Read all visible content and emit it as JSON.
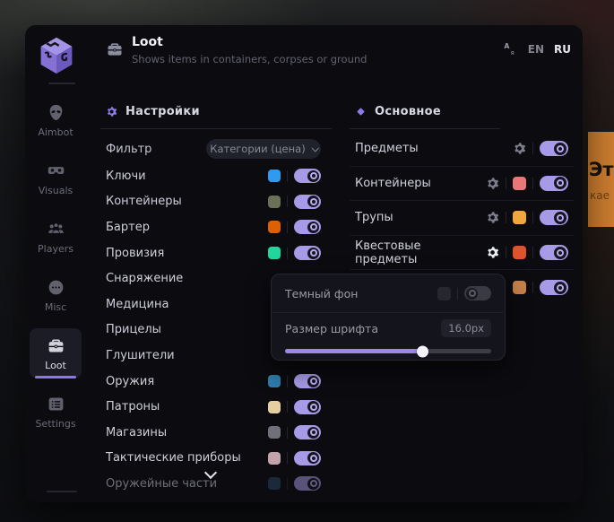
{
  "background": {
    "banner_line1": "Эт",
    "banner_line2": "кае",
    "banner_color": "#cf7e30"
  },
  "header": {
    "title": "Loot",
    "subtitle": "Shows items in containers, corpses or ground",
    "lang_en": "EN",
    "lang_ru": "RU"
  },
  "sidebar": {
    "items": [
      {
        "label": "Aimbot",
        "active": false
      },
      {
        "label": "Visuals",
        "active": false
      },
      {
        "label": "Players",
        "active": false
      },
      {
        "label": "Misc",
        "active": false
      },
      {
        "label": "Loot",
        "active": true
      },
      {
        "label": "Settings",
        "active": false
      }
    ]
  },
  "left_panel": {
    "title": "Настройки",
    "filter_label": "Фильтр",
    "filter_value": "Категории (цена)",
    "rows": [
      {
        "label": "Ключи",
        "color": "#2f9bf0",
        "enabled": true
      },
      {
        "label": "Контейнеры",
        "color": "#6b7158",
        "enabled": true
      },
      {
        "label": "Бартер",
        "color": "#de6000",
        "enabled": true
      },
      {
        "label": "Провизия",
        "color": "#1fd79a",
        "enabled": true
      },
      {
        "label": "Снаряжение"
      },
      {
        "label": "Медицина"
      },
      {
        "label": "Прицелы"
      },
      {
        "label": "Глушители"
      },
      {
        "label": "Оружия",
        "color": "#2e7cab",
        "enabled": true
      },
      {
        "label": "Патроны",
        "color": "#e5cfa0",
        "enabled": true
      },
      {
        "label": "Магазины",
        "color": "#70707a",
        "enabled": true
      },
      {
        "label": "Тактические приборы",
        "color": "#c2a3ab",
        "enabled": true
      },
      {
        "label": "Оружейные части",
        "color": "#2a4a66",
        "enabled": true
      }
    ]
  },
  "right_panel": {
    "title": "Основное",
    "rows": [
      {
        "label": "Предметы",
        "enabled": true
      },
      {
        "label": "Контейнеры",
        "color": "#e87878",
        "enabled": true
      },
      {
        "label": "Трупы",
        "color": "#f0a83c",
        "enabled": true
      },
      {
        "label": "Квестовые предметы",
        "color": "#e0512e",
        "enabled": true
      },
      {
        "label": "",
        "color": "#c8824a",
        "enabled": true
      }
    ]
  },
  "popup": {
    "dark_bg_label": "Темный фон",
    "dark_bg_enabled": false,
    "font_size_label": "Размер шрифта",
    "font_size_value": "16.0px",
    "slider_percent": 67
  },
  "colors": {
    "accent": "#9c86e6",
    "toggle_on": "#a79ae6"
  }
}
